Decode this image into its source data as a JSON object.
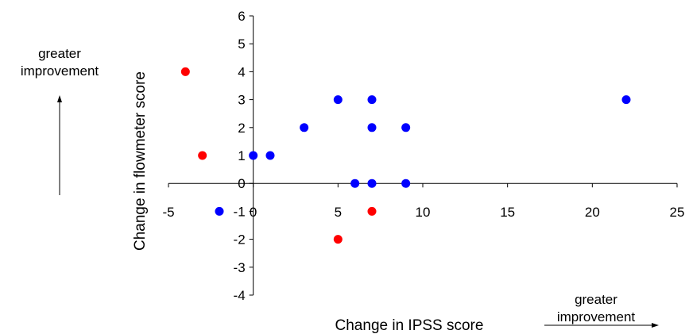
{
  "chart_data": {
    "type": "scatter",
    "title": "",
    "xlabel": "Change in IPSS score",
    "ylabel": "Change in flowmeter score",
    "xlim": [
      -5,
      25
    ],
    "ylim": [
      -4,
      6
    ],
    "xticks": [
      -5,
      0,
      5,
      10,
      15,
      20,
      25
    ],
    "yticks": [
      -4,
      -3,
      -2,
      -1,
      0,
      1,
      2,
      3,
      4,
      5,
      6
    ],
    "grid": false,
    "legend": "none",
    "series": [
      {
        "color": "#0000ff",
        "points": [
          {
            "x": 0,
            "y": 1
          },
          {
            "x": 1,
            "y": 1
          },
          {
            "x": -2,
            "y": -1
          },
          {
            "x": 3,
            "y": 2
          },
          {
            "x": 5,
            "y": 3
          },
          {
            "x": 7,
            "y": 3
          },
          {
            "x": 7,
            "y": 2
          },
          {
            "x": 9,
            "y": 2
          },
          {
            "x": 6,
            "y": 0
          },
          {
            "x": 7,
            "y": 0
          },
          {
            "x": 9,
            "y": 0
          },
          {
            "x": 22,
            "y": 3
          }
        ]
      },
      {
        "color": "#ff0000",
        "points": [
          {
            "x": -4,
            "y": 4
          },
          {
            "x": -3,
            "y": 1
          },
          {
            "x": 5,
            "y": -2
          },
          {
            "x": 7,
            "y": -1
          }
        ]
      }
    ]
  },
  "annotations": {
    "y_direction": {
      "line1": "greater",
      "line2": "improvement"
    },
    "x_direction": {
      "line1": "greater",
      "line2": "improvement"
    }
  }
}
